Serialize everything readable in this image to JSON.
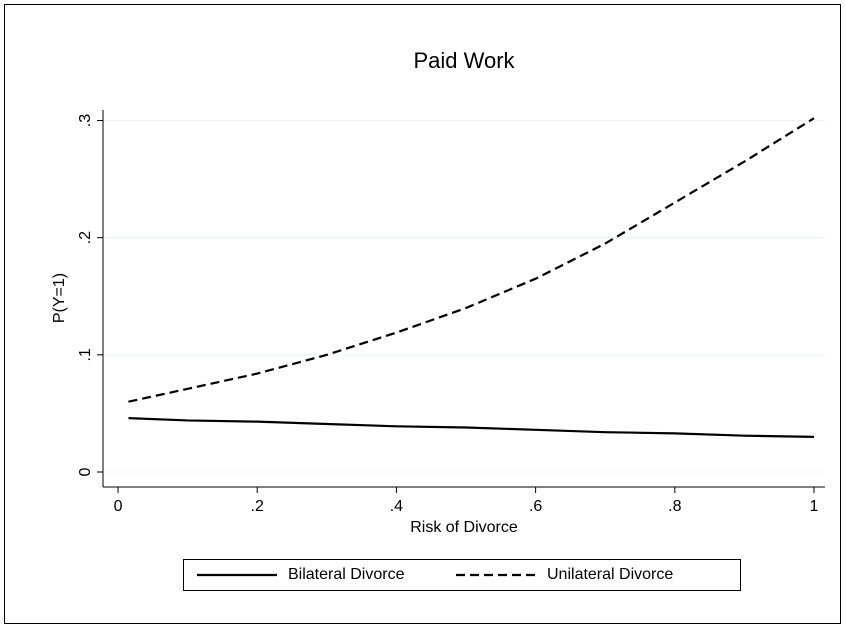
{
  "chart_data": {
    "type": "line",
    "title": "Paid Work",
    "x_label": "Risk of Divorce",
    "y_label": "P(Y=1)",
    "x": [
      0.015,
      0.1,
      0.2,
      0.3,
      0.4,
      0.5,
      0.6,
      0.7,
      0.8,
      0.9,
      1
    ],
    "series": [
      {
        "name": "Bilateral Divorce",
        "color": "#000000",
        "line_style": "solid",
        "values": [
          0.046,
          0.044,
          0.043,
          0.041,
          0.039,
          0.038,
          0.036,
          0.034,
          0.033,
          0.031,
          0.03
        ]
      },
      {
        "name": "Unilateral Divorce",
        "color": "#000000",
        "line_style": "dashed",
        "values": [
          0.06,
          0.071,
          0.084,
          0.1,
          0.119,
          0.14,
          0.165,
          0.195,
          0.23,
          0.265,
          0.302
        ]
      }
    ],
    "xlim": [
      -0.0216,
      1.0158
    ],
    "xticks": [
      0,
      {
        "value": 0.2,
        "label": ".2"
      },
      {
        "value": 0.4,
        "label": ".4"
      },
      {
        "value": 0.6,
        "label": ".6"
      },
      {
        "value": 0.8,
        "label": ".8"
      },
      1
    ],
    "ylim": [
      -0.0128,
      0.309
    ],
    "yticks": [
      0,
      {
        "value": 0.1,
        "label": ".1"
      },
      {
        "value": 0.2,
        "label": ".2"
      },
      {
        "value": 0.3,
        "label": ".3"
      }
    ],
    "grid": true,
    "legend_position": "bottom"
  }
}
